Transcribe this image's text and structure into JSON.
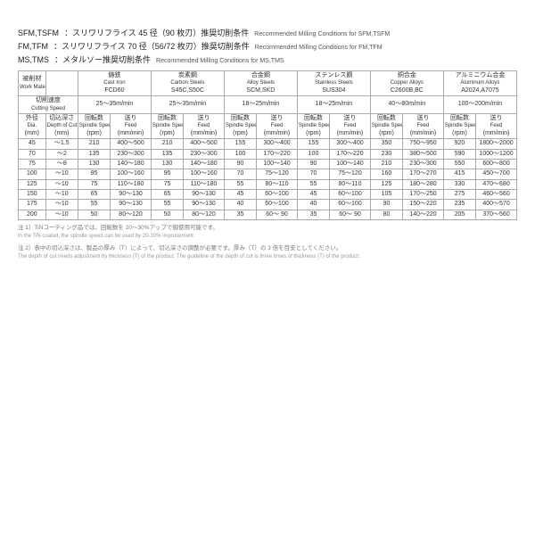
{
  "headers": [
    {
      "code": "SFM,TSFM",
      "jp": "：スリワリフライス 45 径（90 枚刃）推奨切削条件",
      "en": "Recommended Milling Conditions for SFM,TSFM"
    },
    {
      "code": "FM,TFM",
      "jp": "：スリワリフライス 70 径（56/72 枚刃）推奨切削条件",
      "en": "Recommended Milling Conditions for FM,TFM"
    },
    {
      "code": "MS,TMS",
      "jp": "：メタルソー推奨切削条件",
      "en": "Recommended Milling Conditions for MS,TMS"
    }
  ],
  "labels": {
    "work_material_jp": "被削材",
    "work_material_en": "Work Material",
    "cutting_speed_jp": "切削速度",
    "cutting_speed_en": "Cutting Speed",
    "dia_jp": "外径",
    "dia_en": "Dia.",
    "dia_unit": "(mm)",
    "doc_jp": "切込深さ",
    "doc_en": "Depth of Cut",
    "doc_unit": "(mm)",
    "rpm_jp": "回転数",
    "rpm_en": "Spindle Speed",
    "rpm_unit": "(rpm)",
    "feed_jp": "送り",
    "feed_en": "Feed",
    "feed_unit": "(mm/min)"
  },
  "materials": [
    {
      "jp": "鋳鉄",
      "en": "Cast Iron",
      "grade": "FCD60",
      "speed": "25～35m/min"
    },
    {
      "jp": "炭素鋼",
      "en": "Carbon Steels",
      "grade": "S45C,S50C",
      "speed": "25～35m/min"
    },
    {
      "jp": "合金鋼",
      "en": "Alloy Steels",
      "grade": "SCM,SKD",
      "speed": "18～25m/min"
    },
    {
      "jp": "ステンレス鋼",
      "en": "Stainless Steels",
      "grade": "SUS304",
      "speed": "18～25m/min"
    },
    {
      "jp": "銅合金",
      "en": "Copper Alloys",
      "grade": "C2600B,BC",
      "speed": "40～80m/min"
    },
    {
      "jp": "アルミニウム合金",
      "en": "Aluminum Alloys",
      "grade": "A2024,A7075",
      "speed": "100～200m/min"
    }
  ],
  "rows": [
    {
      "dia": "45",
      "doc": "～1.5",
      "v": [
        [
          "210",
          "400～500"
        ],
        [
          "210",
          "400～500"
        ],
        [
          "155",
          "300～400"
        ],
        [
          "155",
          "300～400"
        ],
        [
          "350",
          "750～950"
        ],
        [
          "920",
          "1800～2000"
        ]
      ]
    },
    {
      "dia": "70",
      "doc": "～2",
      "v": [
        [
          "135",
          "230～300"
        ],
        [
          "135",
          "230～300"
        ],
        [
          "100",
          "170～220"
        ],
        [
          "100",
          "170～220"
        ],
        [
          "230",
          "380～500"
        ],
        [
          "590",
          "1000～1200"
        ]
      ]
    },
    {
      "dia": "75",
      "doc": "～8",
      "v": [
        [
          "130",
          "140～180"
        ],
        [
          "130",
          "140～180"
        ],
        [
          "90",
          "100～140"
        ],
        [
          "90",
          "100～140"
        ],
        [
          "210",
          "230～300"
        ],
        [
          "550",
          "600～800"
        ]
      ]
    },
    {
      "dia": "100",
      "doc": "～10",
      "v": [
        [
          "95",
          "100～160"
        ],
        [
          "95",
          "100～160"
        ],
        [
          "70",
          "75～120"
        ],
        [
          "70",
          "75～120"
        ],
        [
          "160",
          "170～270"
        ],
        [
          "415",
          "450～700"
        ]
      ]
    },
    {
      "dia": "125",
      "doc": "～10",
      "v": [
        [
          "75",
          "110～180"
        ],
        [
          "75",
          "110～180"
        ],
        [
          "55",
          "80～110"
        ],
        [
          "55",
          "80～110"
        ],
        [
          "125",
          "180～280"
        ],
        [
          "330",
          "470～680"
        ]
      ]
    },
    {
      "dia": "150",
      "doc": "～10",
      "v": [
        [
          "65",
          "90～130"
        ],
        [
          "65",
          "90～130"
        ],
        [
          "45",
          "60～100"
        ],
        [
          "45",
          "60～100"
        ],
        [
          "105",
          "170～250"
        ],
        [
          "275",
          "460～560"
        ]
      ]
    },
    {
      "dia": "175",
      "doc": "～10",
      "v": [
        [
          "55",
          "90～130"
        ],
        [
          "55",
          "90～130"
        ],
        [
          "40",
          "60～100"
        ],
        [
          "40",
          "60～100"
        ],
        [
          "90",
          "150～220"
        ],
        [
          "235",
          "400～570"
        ]
      ]
    },
    {
      "dia": "200",
      "doc": "～10",
      "v": [
        [
          "50",
          "80～120"
        ],
        [
          "50",
          "80～120"
        ],
        [
          "35",
          "60～ 90"
        ],
        [
          "35",
          "60～ 90"
        ],
        [
          "80",
          "140～220"
        ],
        [
          "205",
          "370～560"
        ]
      ]
    }
  ],
  "notes": [
    {
      "jp": "注 1）TiNコーティング品では、回転数を 20～30%アップで御使用可能です。",
      "en": "In the TiN coated, the spindle speed can be used by 20-30% improvement."
    },
    {
      "jp": "注 2）表中の切込深さは、製品の厚み（T）によって、切込深さの調整が必要です。厚み（T）の 3 倍を目安としてください。",
      "en": "The depth of cut needs adjustment by thickness (T) of the product. The guideline of the depth of cut is three times of thickness (T) of the product."
    }
  ]
}
